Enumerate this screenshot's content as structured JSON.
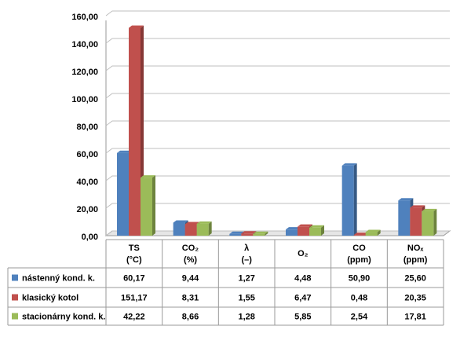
{
  "chart_data": {
    "type": "bar3d",
    "categories": [
      "TS",
      "CO₂",
      "λ",
      "O₂",
      "CO",
      "NOₓ"
    ],
    "category_units": [
      "(°C)",
      "(%)",
      "(–)",
      null,
      "(ppm)",
      "(ppm)"
    ],
    "series": [
      {
        "name": "nástenný kond. k.",
        "color": "#4f81bd",
        "values": [
          60.17,
          9.44,
          1.27,
          4.48,
          50.9,
          25.6
        ],
        "value_labels": [
          "60,17",
          "9,44",
          "1,27",
          "4,48",
          "50,90",
          "25,60"
        ]
      },
      {
        "name": "klasický kotol",
        "color": "#c0504d",
        "values": [
          151.17,
          8.31,
          1.55,
          6.47,
          0.48,
          20.35
        ],
        "value_labels": [
          "151,17",
          "8,31",
          "1,55",
          "6,47",
          "0,48",
          "20,35"
        ]
      },
      {
        "name": "stacionárny kond. k.",
        "color": "#9bbb59",
        "values": [
          42.22,
          8.66,
          1.28,
          5.85,
          2.54,
          17.81
        ],
        "value_labels": [
          "42,22",
          "8,66",
          "1,28",
          "5,85",
          "2,54",
          "17,81"
        ]
      }
    ],
    "ylim": [
      0,
      160
    ],
    "yticks": [
      {
        "value": 0,
        "label": "0,00"
      },
      {
        "value": 20,
        "label": "20,00"
      },
      {
        "value": 40,
        "label": "40,00"
      },
      {
        "value": 60,
        "label": "60,00"
      },
      {
        "value": 80,
        "label": "80,00"
      },
      {
        "value": 100,
        "label": "100,00"
      },
      {
        "value": 120,
        "label": "120,00"
      },
      {
        "value": 140,
        "label": "140,00"
      },
      {
        "value": 160,
        "label": "160,00"
      }
    ],
    "grid": true,
    "legend": "table"
  }
}
